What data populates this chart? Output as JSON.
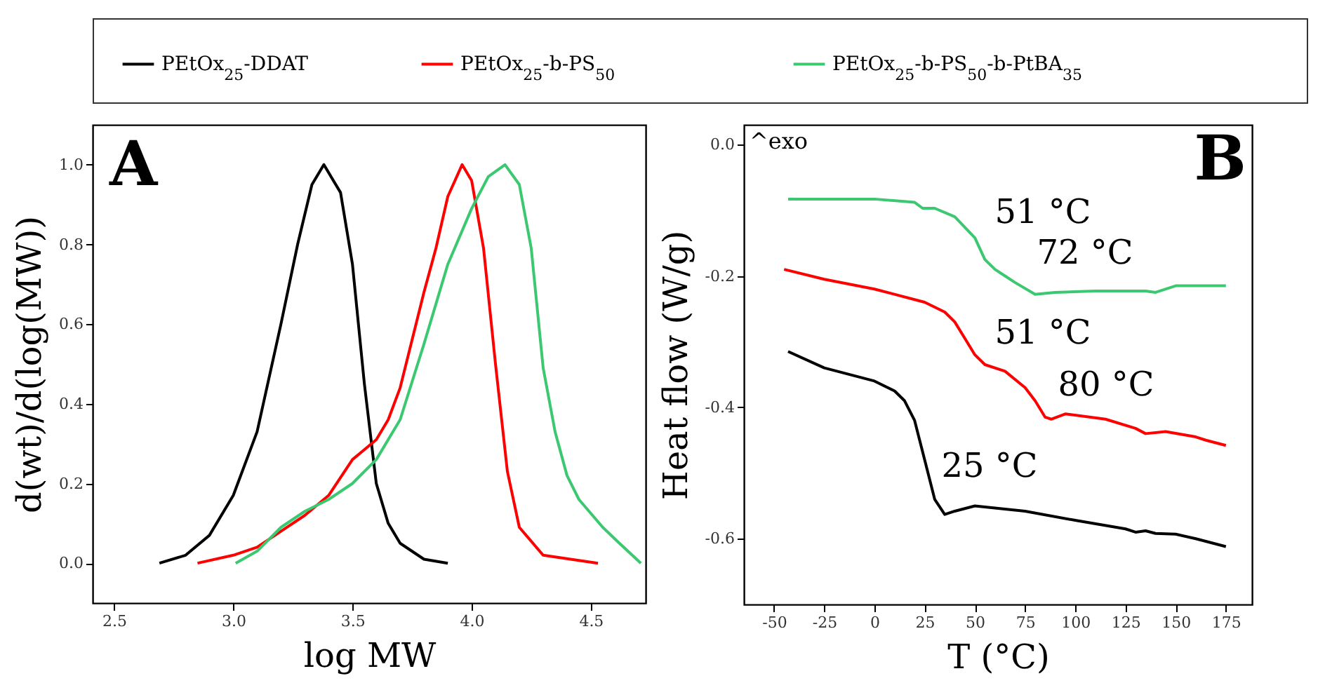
{
  "chart_data": [
    {
      "type": "line",
      "xlabel": "log MW",
      "ylabel": "d(wt)/d(log(MW))",
      "xlim": [
        2.41,
        4.73
      ],
      "ylim": [
        -0.1,
        1.1
      ],
      "xticks": [
        2.5,
        {
          "value": 3,
          "label": "3.0"
        },
        3.5,
        {
          "value": 4,
          "label": "4.0"
        },
        4.5
      ],
      "yticks": [
        {
          "value": 0,
          "label": "0.0"
        },
        0.2,
        0.4,
        0.6,
        0.8,
        {
          "value": 1,
          "label": "1.0"
        }
      ],
      "legend": "top",
      "annotations": [
        "A"
      ],
      "series": [
        {
          "name": "PEtOx$_{25}$-DDAT",
          "color": "#000000",
          "x": [
            2.69,
            2.8,
            2.9,
            3.0,
            3.1,
            3.2,
            3.27,
            3.33,
            3.38,
            3.45,
            3.5,
            3.55,
            3.6,
            3.65,
            3.7,
            3.8,
            3.9
          ],
          "values": [
            0,
            0.02,
            0.07,
            0.17,
            0.33,
            0.6,
            0.8,
            0.95,
            1.0,
            0.93,
            0.75,
            0.45,
            0.2,
            0.1,
            0.05,
            0.01,
            0
          ]
        },
        {
          "name": "PEtOx$_{25}$-b-PS$_{50}$",
          "color": "#ff0000",
          "x": [
            2.85,
            3.0,
            3.1,
            3.2,
            3.3,
            3.4,
            3.5,
            3.6,
            3.65,
            3.7,
            3.8,
            3.85,
            3.9,
            3.96,
            4.0,
            4.05,
            4.1,
            4.15,
            4.2,
            4.3,
            4.53
          ],
          "values": [
            0,
            0.02,
            0.04,
            0.08,
            0.12,
            0.17,
            0.26,
            0.31,
            0.36,
            0.44,
            0.68,
            0.79,
            0.92,
            1.0,
            0.96,
            0.79,
            0.5,
            0.23,
            0.09,
            0.02,
            0
          ]
        },
        {
          "name": "PEtOx$_{25}$-b-PS$_{50}$-b-PtBA$_{35}$",
          "color": "#3cc870",
          "x": [
            3.01,
            3.1,
            3.2,
            3.3,
            3.4,
            3.5,
            3.6,
            3.7,
            3.8,
            3.9,
            4.0,
            4.07,
            4.14,
            4.2,
            4.25,
            4.3,
            4.35,
            4.4,
            4.45,
            4.55,
            4.62,
            4.71
          ],
          "values": [
            0,
            0.03,
            0.09,
            0.13,
            0.16,
            0.2,
            0.26,
            0.36,
            0.55,
            0.75,
            0.89,
            0.97,
            1.0,
            0.95,
            0.79,
            0.49,
            0.33,
            0.22,
            0.16,
            0.09,
            0.05,
            0
          ]
        }
      ]
    },
    {
      "type": "line",
      "xlabel": "T (°C)",
      "ylabel": "Heat flow (W/g)",
      "xlim": [
        -65,
        188
      ],
      "ylim": [
        -0.7,
        0.03
      ],
      "xticks": [
        -50,
        -25,
        0,
        25,
        50,
        75,
        100,
        125,
        150,
        175
      ],
      "yticks": [
        {
          "value": -0.6,
          "label": "-0.6"
        },
        {
          "value": -0.4,
          "label": "-0.4"
        },
        {
          "value": -0.2,
          "label": "-0.2"
        },
        {
          "value": 0,
          "label": "0.0"
        }
      ],
      "annotations": [
        "^exo",
        "B",
        "51 °C",
        "72 °C",
        "51 °C",
        "80 °C",
        "25 °C"
      ],
      "series": [
        {
          "color": "#3cc870",
          "x": [
            -43,
            -25,
            0,
            20,
            24,
            30,
            40,
            50,
            55,
            60,
            65,
            70,
            80,
            90,
            110,
            135,
            140,
            150,
            175
          ],
          "values": [
            -0.083,
            -0.083,
            -0.083,
            -0.088,
            -0.097,
            -0.097,
            -0.11,
            -0.142,
            -0.175,
            -0.19,
            -0.2,
            -0.21,
            -0.228,
            -0.225,
            -0.223,
            -0.223,
            -0.225,
            -0.215,
            -0.215
          ]
        },
        {
          "color": "#ff0000",
          "x": [
            -45,
            -25,
            0,
            25,
            35,
            40,
            45,
            50,
            55,
            65,
            75,
            80,
            85,
            88,
            95,
            115,
            130,
            135,
            145,
            160,
            165,
            175
          ],
          "values": [
            -0.19,
            -0.205,
            -0.22,
            -0.24,
            -0.255,
            -0.27,
            -0.295,
            -0.32,
            -0.335,
            -0.345,
            -0.37,
            -0.39,
            -0.415,
            -0.418,
            -0.41,
            -0.418,
            -0.432,
            -0.44,
            -0.437,
            -0.445,
            -0.45,
            -0.458
          ]
        },
        {
          "color": "#000000",
          "x": [
            -43,
            -25,
            0,
            10,
            15,
            20,
            25,
            30,
            35,
            40,
            50,
            75,
            100,
            125,
            130,
            135,
            140,
            150,
            160,
            175
          ],
          "values": [
            -0.315,
            -0.34,
            -0.36,
            -0.375,
            -0.39,
            -0.42,
            -0.48,
            -0.54,
            -0.563,
            -0.558,
            -0.55,
            -0.558,
            -0.572,
            -0.585,
            -0.59,
            -0.588,
            -0.592,
            -0.593,
            -0.6,
            -0.612
          ]
        }
      ]
    }
  ]
}
